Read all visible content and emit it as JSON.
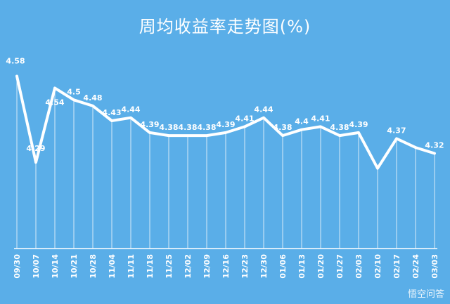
{
  "chart_data": {
    "type": "line",
    "title": "周均收益率走势图(%)",
    "categories": [
      "09/30",
      "10/07",
      "10/14",
      "10/21",
      "10/28",
      "11/04",
      "11/11",
      "11/18",
      "11/25",
      "12/02",
      "12/09",
      "12/16",
      "12/23",
      "12/30",
      "01/06",
      "01/13",
      "01/20",
      "01/27",
      "02/03",
      "02/10",
      "02/17",
      "02/24",
      "03/03"
    ],
    "series": [
      {
        "values": [
          4.58,
          4.29,
          4.54,
          4.5,
          4.48,
          4.43,
          4.44,
          4.39,
          4.38,
          4.38,
          4.38,
          4.39,
          4.41,
          4.44,
          4.38,
          4.4,
          4.41,
          4.38,
          4.39,
          4.27,
          4.37,
          4.34,
          4.32
        ]
      }
    ],
    "labels": [
      "4.58",
      "4.29",
      "4.54",
      "4.5",
      "4.48",
      "4.43",
      "4.44",
      "4.39",
      "4.38",
      "4.38",
      "4.38",
      "4.39",
      "4.41",
      "4.44",
      "4.38",
      "4.4",
      "4.41",
      "4.38",
      "4.39",
      "",
      "4.37",
      "",
      "4.32"
    ],
    "ylim": [
      4.0,
      4.6
    ],
    "xlabel": "",
    "ylabel": "",
    "grid": "vertical-lines",
    "legend": "none"
  },
  "colors": {
    "background": "#5aaee8",
    "line": "#ffffff",
    "text": "#ffffff"
  },
  "watermark": "悟空问答"
}
